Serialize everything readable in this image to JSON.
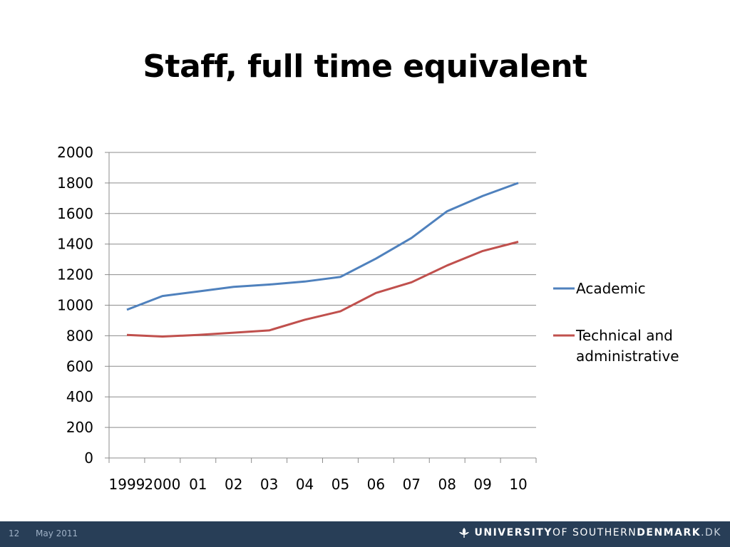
{
  "slide": {
    "title": "Staff, full time equivalent"
  },
  "footer": {
    "page_number": "12",
    "date": "May 2011",
    "brand_part1": "UNIVERSITY",
    "brand_part2": " OF SOUTHERN ",
    "brand_part3": "DENMARK",
    "brand_part4": ".DK",
    "footer_bg": "#283e57"
  },
  "chart_data": {
    "type": "line",
    "title": "",
    "xlabel": "",
    "ylabel": "",
    "categories": [
      "1999",
      "2000",
      "01",
      "02",
      "03",
      "04",
      "05",
      "06",
      "07",
      "08",
      "09",
      "10"
    ],
    "ylim": [
      0,
      2000
    ],
    "yticks": [
      0,
      200,
      400,
      600,
      800,
      1000,
      1200,
      1400,
      1600,
      1800,
      2000
    ],
    "grid": true,
    "legend_position": "right",
    "series": [
      {
        "name": "Academic",
        "color": "#4f81bd",
        "values": [
          970,
          1060,
          1090,
          1120,
          1135,
          1155,
          1185,
          1305,
          1440,
          1615,
          1715,
          1800
        ]
      },
      {
        "name": "Technical and administrative",
        "color": "#c0504d",
        "values": [
          805,
          795,
          805,
          820,
          835,
          905,
          960,
          1080,
          1150,
          1260,
          1355,
          1415
        ]
      }
    ]
  }
}
